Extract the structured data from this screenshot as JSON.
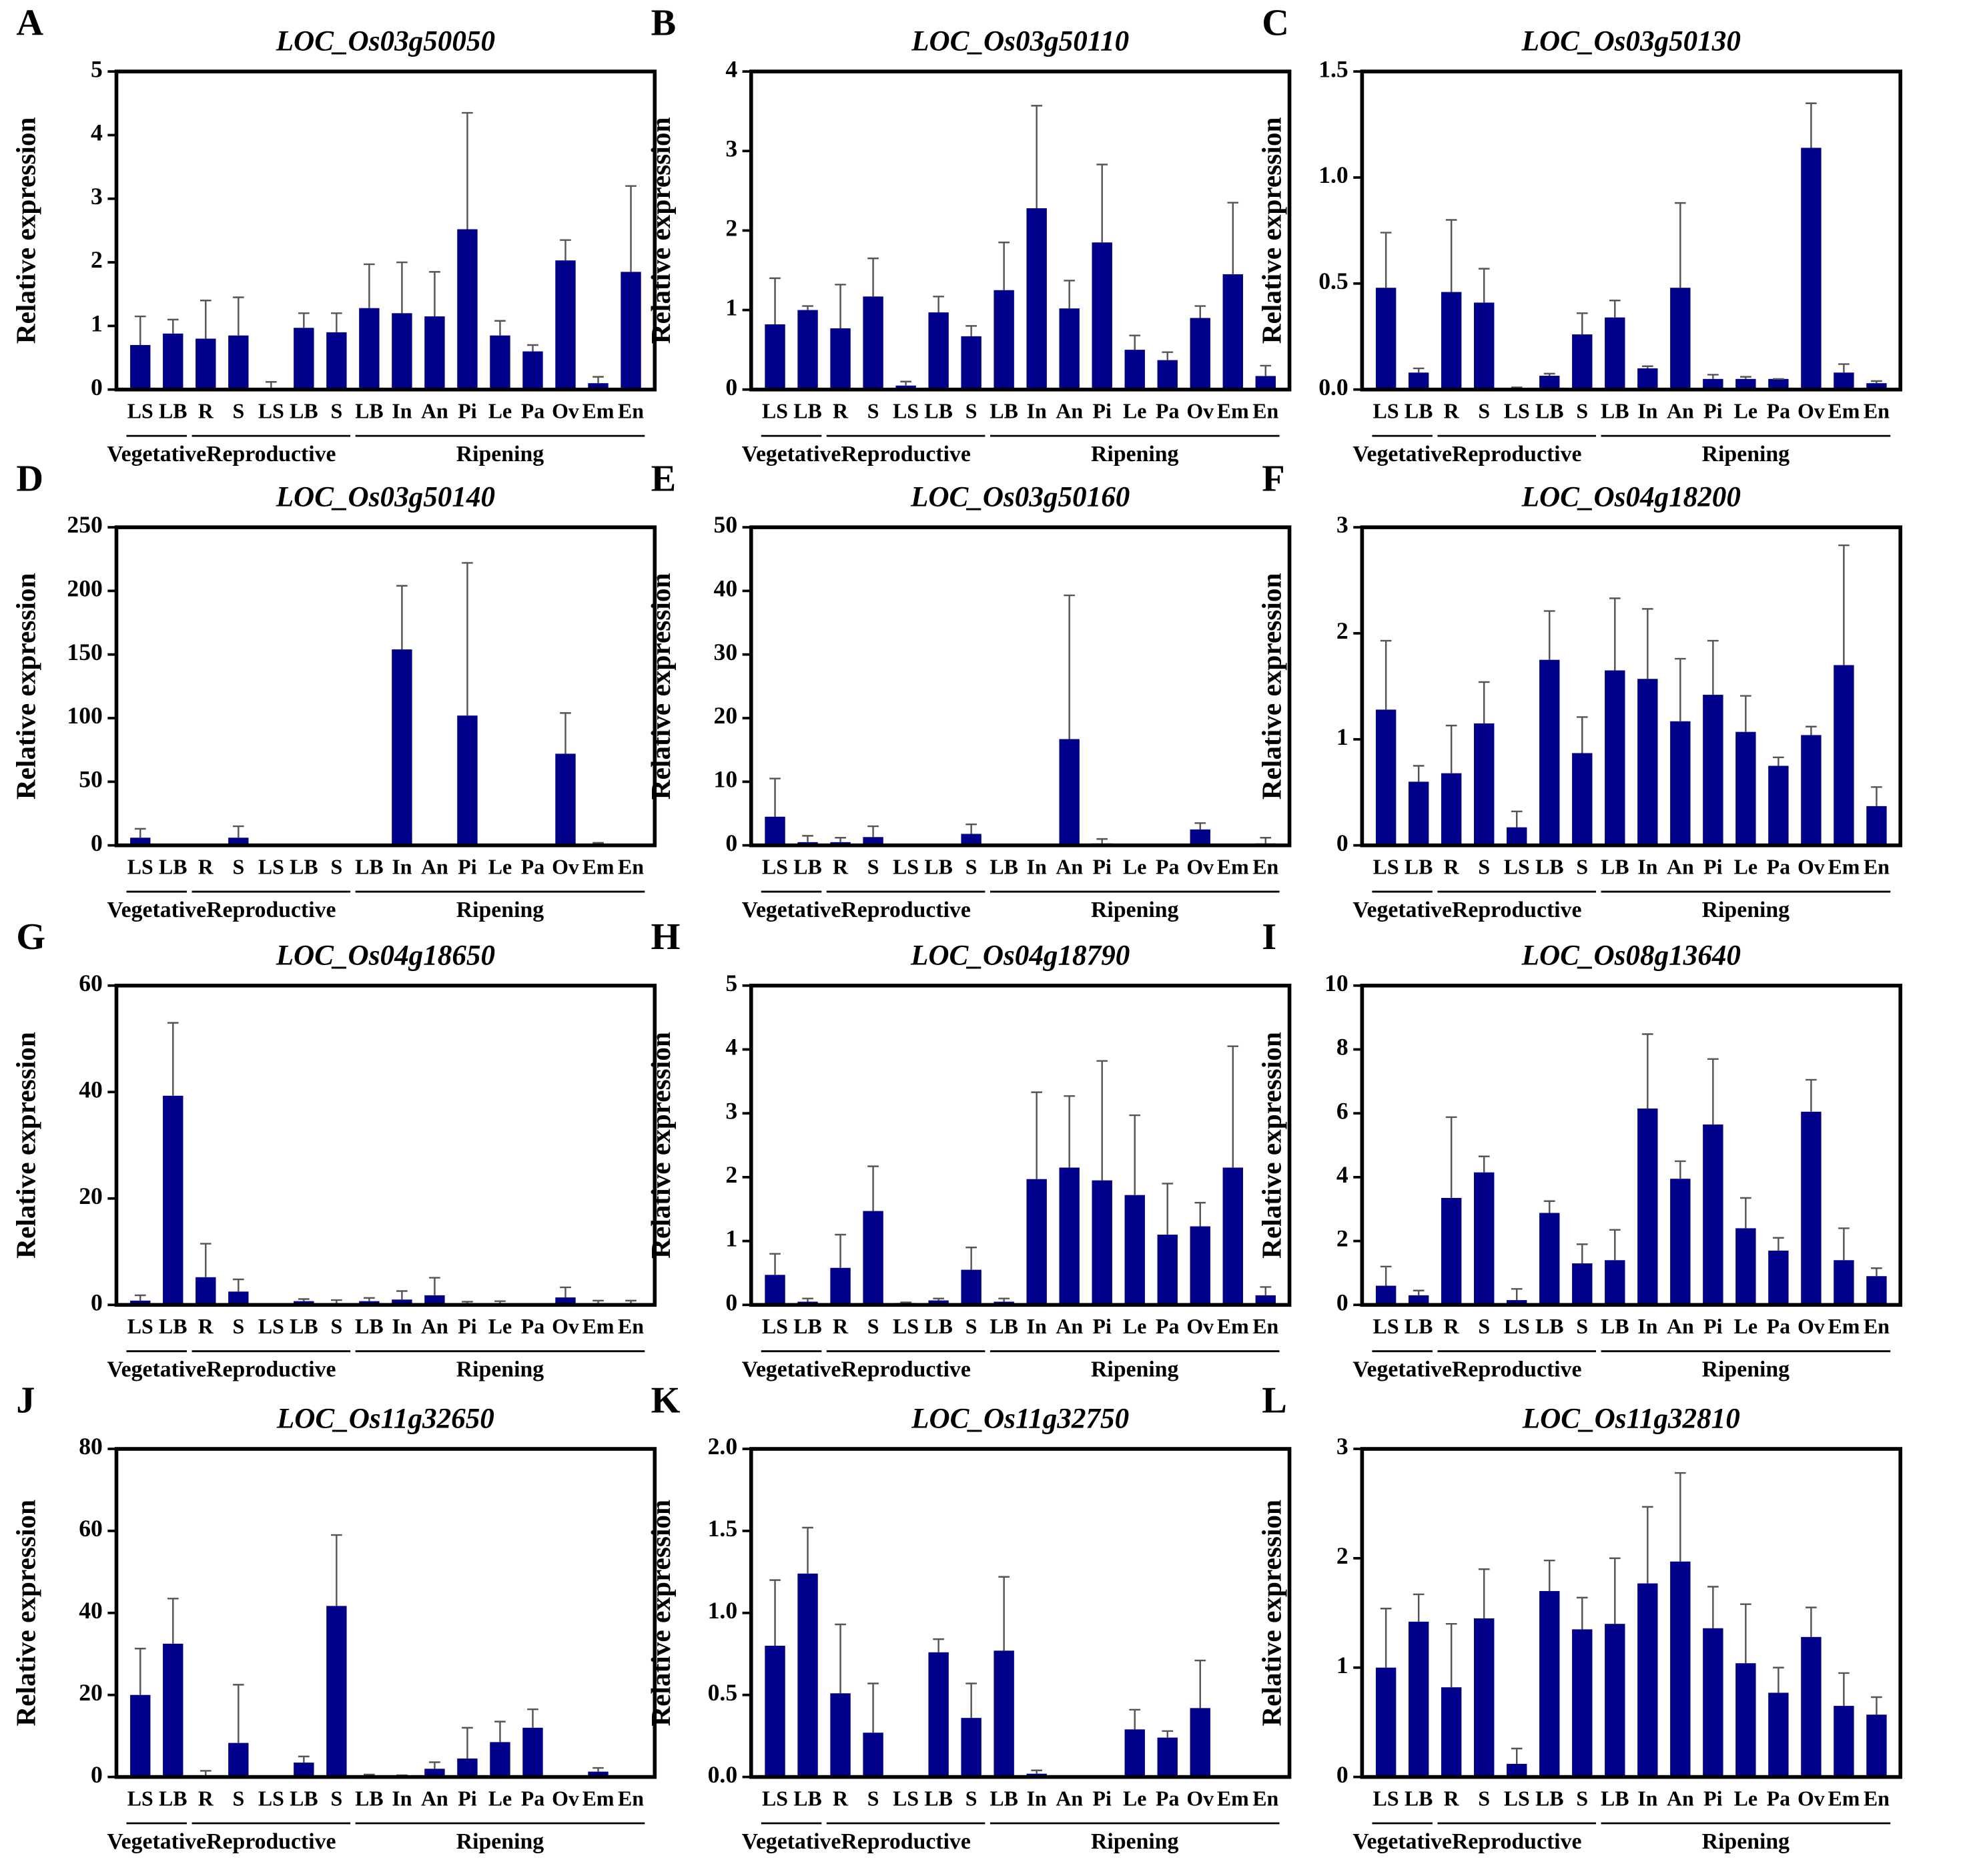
{
  "chart_data": [
    {
      "type": "bar",
      "label": "A",
      "title": "LOC_Os03g50050",
      "ylabel": "Relative expression",
      "color": "#00008b",
      "ylim": [
        0,
        5
      ],
      "yticks": [
        0,
        1,
        2,
        3,
        4,
        5
      ],
      "groups": [
        {
          "name": "Vegetative",
          "categories": [
            "LS",
            "LB"
          ]
        },
        {
          "name": "Reproductive",
          "categories": [
            "R",
            "S",
            "LS",
            "LB",
            "S"
          ]
        },
        {
          "name": "Ripening",
          "categories": [
            "LB",
            "In",
            "An",
            "Pi",
            "Le",
            "Pa",
            "Ov",
            "Em",
            "En"
          ]
        }
      ],
      "values": [
        0.7,
        0.88,
        0.8,
        0.85,
        0.02,
        0.97,
        0.9,
        1.28,
        1.2,
        1.15,
        2.52,
        0.85,
        0.6,
        2.03,
        0.1,
        1.85
      ],
      "errors": [
        0.45,
        0.22,
        0.6,
        0.6,
        0.1,
        0.23,
        0.3,
        0.69,
        0.8,
        0.7,
        1.83,
        0.23,
        0.1,
        0.32,
        0.1,
        1.35
      ]
    },
    {
      "type": "bar",
      "label": "B",
      "title": "LOC_Os03g50110",
      "ylabel": "Relative expression",
      "color": "#00008b",
      "ylim": [
        0,
        4
      ],
      "yticks": [
        0,
        1,
        2,
        3,
        4
      ],
      "groups": [
        {
          "name": "Vegetative",
          "categories": [
            "LS",
            "LB"
          ]
        },
        {
          "name": "Reproductive",
          "categories": [
            "R",
            "S",
            "LS",
            "LB",
            "S"
          ]
        },
        {
          "name": "Ripening",
          "categories": [
            "LB",
            "In",
            "An",
            "Pi",
            "Le",
            "Pa",
            "Ov",
            "Em",
            "En"
          ]
        }
      ],
      "values": [
        0.82,
        1.0,
        0.77,
        1.17,
        0.05,
        0.97,
        0.67,
        1.25,
        2.28,
        1.02,
        1.85,
        0.5,
        0.37,
        0.9,
        1.45,
        0.17
      ],
      "errors": [
        0.58,
        0.05,
        0.55,
        0.48,
        0.05,
        0.2,
        0.13,
        0.6,
        1.29,
        0.35,
        0.98,
        0.18,
        0.1,
        0.15,
        0.9,
        0.13
      ]
    },
    {
      "type": "bar",
      "label": "C",
      "title": "LOC_Os03g50130",
      "ylabel": "Relative expression",
      "color": "#00008b",
      "ylim": [
        0,
        1.5
      ],
      "yticks": [
        {
          "value": 0,
          "label": "0.0"
        },
        0.5,
        {
          "value": 1,
          "label": "1.0"
        },
        1.5
      ],
      "groups": [
        {
          "name": "Vegetative",
          "categories": [
            "LS",
            "LB"
          ]
        },
        {
          "name": "Reproductive",
          "categories": [
            "R",
            "S",
            "LS",
            "LB",
            "S"
          ]
        },
        {
          "name": "Ripening",
          "categories": [
            "LB",
            "In",
            "An",
            "Pi",
            "Le",
            "Pa",
            "Ov",
            "Em",
            "En"
          ]
        }
      ],
      "values": [
        0.48,
        0.08,
        0.46,
        0.41,
        0.005,
        0.065,
        0.26,
        0.34,
        0.1,
        0.48,
        0.05,
        0.05,
        0.05,
        1.14,
        0.08,
        0.03
      ],
      "errors": [
        0.26,
        0.02,
        0.34,
        0.16,
        0.005,
        0.01,
        0.1,
        0.08,
        0.01,
        0.4,
        0.02,
        0.01,
        0,
        0.21,
        0.04,
        0.01
      ]
    },
    {
      "type": "bar",
      "label": "D",
      "title": "LOC_Os03g50140",
      "ylabel": "Relative expression",
      "color": "#00008b",
      "ylim": [
        0,
        250
      ],
      "yticks": [
        0,
        50,
        100,
        150,
        200,
        250
      ],
      "groups": [
        {
          "name": "Vegetative",
          "categories": [
            "LS",
            "LB"
          ]
        },
        {
          "name": "Reproductive",
          "categories": [
            "R",
            "S",
            "LS",
            "LB",
            "S"
          ]
        },
        {
          "name": "Ripening",
          "categories": [
            "LB",
            "In",
            "An",
            "Pi",
            "Le",
            "Pa",
            "Ov",
            "Em",
            "En"
          ]
        }
      ],
      "values": [
        6,
        0,
        0,
        6,
        0,
        0,
        0,
        0,
        154,
        0,
        102,
        0,
        0,
        72,
        1,
        0
      ],
      "errors": [
        7,
        0,
        0,
        9,
        0,
        0,
        0,
        0,
        50,
        0,
        120,
        0,
        0,
        32,
        1,
        0
      ]
    },
    {
      "type": "bar",
      "label": "E",
      "title": "LOC_Os03g50160",
      "ylabel": "Relative expression",
      "color": "#00008b",
      "ylim": [
        0,
        50
      ],
      "yticks": [
        0,
        10,
        20,
        30,
        40,
        50
      ],
      "groups": [
        {
          "name": "Vegetative",
          "categories": [
            "LS",
            "LB"
          ]
        },
        {
          "name": "Reproductive",
          "categories": [
            "R",
            "S",
            "LS",
            "LB",
            "S"
          ]
        },
        {
          "name": "Ripening",
          "categories": [
            "LB",
            "In",
            "An",
            "Pi",
            "Le",
            "Pa",
            "Ov",
            "Em",
            "En"
          ]
        }
      ],
      "values": [
        4.5,
        0.5,
        0.5,
        1.3,
        0,
        0,
        1.8,
        0,
        0,
        16.7,
        0.3,
        0,
        0,
        2.5,
        0,
        0.3
      ],
      "errors": [
        6,
        1,
        0.7,
        1.7,
        0,
        0,
        1.5,
        0,
        0,
        22.6,
        0.7,
        0,
        0,
        1,
        0,
        0.9
      ]
    },
    {
      "type": "bar",
      "label": "F",
      "title": "LOC_Os04g18200",
      "ylabel": "Relative expression",
      "color": "#00008b",
      "ylim": [
        0,
        3
      ],
      "yticks": [
        0,
        1,
        2,
        3
      ],
      "groups": [
        {
          "name": "Vegetative",
          "categories": [
            "LS",
            "LB"
          ]
        },
        {
          "name": "Reproductive",
          "categories": [
            "R",
            "S",
            "LS",
            "LB",
            "S"
          ]
        },
        {
          "name": "Ripening",
          "categories": [
            "LB",
            "In",
            "An",
            "Pi",
            "Le",
            "Pa",
            "Ov",
            "Em",
            "En"
          ]
        }
      ],
      "values": [
        1.28,
        0.6,
        0.68,
        1.15,
        0.17,
        1.75,
        0.87,
        1.65,
        1.57,
        1.17,
        1.42,
        1.07,
        0.75,
        1.04,
        1.7,
        0.37
      ],
      "errors": [
        0.65,
        0.15,
        0.45,
        0.39,
        0.15,
        0.46,
        0.34,
        0.68,
        0.66,
        0.59,
        0.51,
        0.34,
        0.08,
        0.08,
        1.13,
        0.18
      ]
    },
    {
      "type": "bar",
      "label": "G",
      "title": "LOC_Os04g18650",
      "ylabel": "Relative expression",
      "color": "#00008b",
      "ylim": [
        0,
        60
      ],
      "yticks": [
        0,
        20,
        40,
        60
      ],
      "groups": [
        {
          "name": "Vegetative",
          "categories": [
            "LS",
            "LB"
          ]
        },
        {
          "name": "Reproductive",
          "categories": [
            "R",
            "S",
            "LS",
            "LB",
            "S"
          ]
        },
        {
          "name": "Ripening",
          "categories": [
            "LB",
            "In",
            "An",
            "Pi",
            "Le",
            "Pa",
            "Ov",
            "Em",
            "En"
          ]
        }
      ],
      "values": [
        0.8,
        39.3,
        5.2,
        2.5,
        0,
        0.7,
        0.3,
        0.7,
        1,
        1.8,
        0.3,
        0.3,
        0,
        1.4,
        0.3,
        0.3
      ],
      "errors": [
        1,
        13.7,
        6.3,
        2.3,
        0,
        0.4,
        0.6,
        0.6,
        1.6,
        3.3,
        0.3,
        0.4,
        0,
        1.9,
        0.5,
        0.5
      ]
    },
    {
      "type": "bar",
      "label": "H",
      "title": "LOC_Os04g18790",
      "ylabel": "Relative expression",
      "color": "#00008b",
      "ylim": [
        0,
        5
      ],
      "yticks": [
        0,
        1,
        2,
        3,
        4,
        5
      ],
      "groups": [
        {
          "name": "Vegetative",
          "categories": [
            "LS",
            "LB"
          ]
        },
        {
          "name": "Reproductive",
          "categories": [
            "R",
            "S",
            "LS",
            "LB",
            "S"
          ]
        },
        {
          "name": "Ripening",
          "categories": [
            "LB",
            "In",
            "An",
            "Pi",
            "Le",
            "Pa",
            "Ov",
            "Em",
            "En"
          ]
        }
      ],
      "values": [
        0.47,
        0.05,
        0.58,
        1.47,
        0.03,
        0.07,
        0.55,
        0.05,
        1.97,
        2.15,
        1.95,
        1.72,
        1.1,
        1.23,
        2.15,
        0.15
      ],
      "errors": [
        0.33,
        0.05,
        0.52,
        0.7,
        0.01,
        0.03,
        0.35,
        0.05,
        1.36,
        1.12,
        1.87,
        1.25,
        0.8,
        0.37,
        1.9,
        0.13
      ]
    },
    {
      "type": "bar",
      "label": "I",
      "title": "LOC_Os08g13640",
      "ylabel": "Relative expression",
      "color": "#00008b",
      "ylim": [
        0,
        10
      ],
      "yticks": [
        0,
        2,
        4,
        6,
        8,
        10
      ],
      "groups": [
        {
          "name": "Vegetative",
          "categories": [
            "LS",
            "LB"
          ]
        },
        {
          "name": "Reproductive",
          "categories": [
            "R",
            "S",
            "LS",
            "LB",
            "S"
          ]
        },
        {
          "name": "Ripening",
          "categories": [
            "LB",
            "In",
            "An",
            "Pi",
            "Le",
            "Pa",
            "Ov",
            "Em",
            "En"
          ]
        }
      ],
      "values": [
        0.6,
        0.3,
        3.35,
        4.15,
        0.15,
        2.88,
        1.3,
        1.4,
        6.15,
        3.95,
        5.65,
        2.4,
        1.7,
        6.05,
        1.4,
        0.9
      ],
      "errors": [
        0.6,
        0.15,
        2.53,
        0.5,
        0.35,
        0.37,
        0.6,
        0.95,
        2.33,
        0.55,
        2.05,
        0.95,
        0.4,
        1,
        1,
        0.25
      ]
    },
    {
      "type": "bar",
      "label": "J",
      "title": "LOC_Os11g32650",
      "ylabel": "Relative expression",
      "color": "#00008b",
      "ylim": [
        0,
        80
      ],
      "yticks": [
        0,
        20,
        40,
        60,
        80
      ],
      "groups": [
        {
          "name": "Vegetative",
          "categories": [
            "LS",
            "LB"
          ]
        },
        {
          "name": "Reproductive",
          "categories": [
            "R",
            "S",
            "LS",
            "LB",
            "S"
          ]
        },
        {
          "name": "Ripening",
          "categories": [
            "LB",
            "In",
            "An",
            "Pi",
            "Le",
            "Pa",
            "Ov",
            "Em",
            "En"
          ]
        }
      ],
      "values": [
        20,
        32.5,
        0.3,
        8.3,
        0,
        3.5,
        41.7,
        0.3,
        0.2,
        2,
        4.5,
        8.5,
        12,
        0,
        1.3,
        0
      ],
      "errors": [
        11.3,
        11,
        1.2,
        14.2,
        0,
        1.5,
        17.3,
        0.3,
        0.2,
        1.6,
        7.5,
        5,
        4.5,
        0,
        0.9,
        0
      ]
    },
    {
      "type": "bar",
      "label": "K",
      "title": "LOC_Os11g32750",
      "ylabel": "Relative expression",
      "color": "#00008b",
      "ylim": [
        0,
        2
      ],
      "yticks": [
        {
          "value": 0,
          "label": "0.0"
        },
        0.5,
        {
          "value": 1,
          "label": "1.0"
        },
        1.5,
        {
          "value": 2,
          "label": "2.0"
        }
      ],
      "groups": [
        {
          "name": "Vegetative",
          "categories": [
            "LS",
            "LB"
          ]
        },
        {
          "name": "Reproductive",
          "categories": [
            "R",
            "S",
            "LS",
            "LB",
            "S"
          ]
        },
        {
          "name": "Ripening",
          "categories": [
            "LB",
            "In",
            "An",
            "Pi",
            "Le",
            "Pa",
            "Ov",
            "Em",
            "En"
          ]
        }
      ],
      "values": [
        0.8,
        1.24,
        0.51,
        0.27,
        0,
        0.76,
        0.36,
        0.77,
        0.02,
        0,
        0.005,
        0.29,
        0.24,
        0.42,
        0,
        0
      ],
      "errors": [
        0.4,
        0.28,
        0.42,
        0.3,
        0,
        0.08,
        0.21,
        0.45,
        0.02,
        0,
        0,
        0.12,
        0.04,
        0.29,
        0,
        0
      ]
    },
    {
      "type": "bar",
      "label": "L",
      "title": "LOC_Os11g32810",
      "ylabel": "Relative expression",
      "color": "#00008b",
      "ylim": [
        0,
        3
      ],
      "yticks": [
        0,
        1,
        2,
        3
      ],
      "groups": [
        {
          "name": "Vegetative",
          "categories": [
            "LS",
            "LB"
          ]
        },
        {
          "name": "Reproductive",
          "categories": [
            "R",
            "S",
            "LS",
            "LB",
            "S"
          ]
        },
        {
          "name": "Ripening",
          "categories": [
            "LB",
            "In",
            "An",
            "Pi",
            "Le",
            "Pa",
            "Ov",
            "Em",
            "En"
          ]
        }
      ],
      "values": [
        1.0,
        1.42,
        0.82,
        1.45,
        0.12,
        1.7,
        1.35,
        1.4,
        1.77,
        1.97,
        1.36,
        1.04,
        0.77,
        1.28,
        0.65,
        0.57
      ],
      "errors": [
        0.54,
        0.25,
        0.58,
        0.45,
        0.14,
        0.28,
        0.29,
        0.6,
        0.7,
        0.81,
        0.38,
        0.54,
        0.23,
        0.27,
        0.3,
        0.16
      ]
    }
  ]
}
